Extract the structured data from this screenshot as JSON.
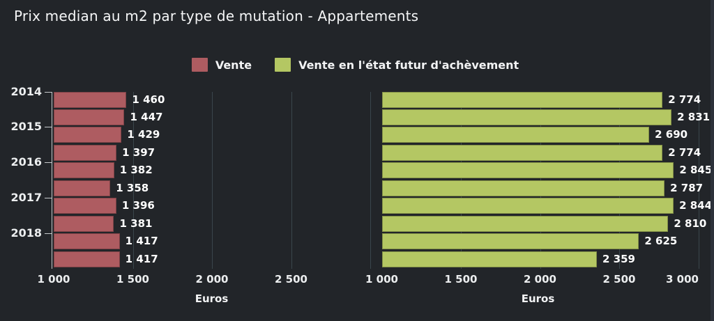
{
  "title": "Prix median au m2 par type de mutation - Appartements",
  "legend": {
    "items": [
      {
        "label": "Vente",
        "color": "#ae5c61"
      },
      {
        "label": "Vente en l'état futur d'achèvement",
        "color": "#b4c763"
      }
    ]
  },
  "chart_data": {
    "type": "bar",
    "orientation": "horizontal",
    "title": "Prix median au m2 par type de mutation - Appartements",
    "xlabel": "Euros",
    "x_range": [
      1000,
      3050
    ],
    "grid": true,
    "legend_position": "top",
    "y_axis_year_ticks": [
      "2014",
      "2015",
      "2016",
      "2017",
      "2018"
    ],
    "bars_per_year": 2,
    "panels": [
      {
        "series": "Vente",
        "color": "#ae5c61",
        "values": [
          1460,
          1447,
          1429,
          1397,
          1382,
          1358,
          1396,
          1381,
          1417,
          1417
        ],
        "x_tick_values": [
          1000,
          1500,
          2000,
          2500
        ],
        "x_tick_labels": [
          "1 000",
          "1 500",
          "2 000",
          "2 500"
        ],
        "axis_title": "Euros"
      },
      {
        "series": "Vente en l'état futur d'achèvement",
        "color": "#b4c763",
        "values": [
          2774,
          2831,
          2690,
          2774,
          2845,
          2787,
          2844,
          2810,
          2625,
          2359
        ],
        "x_tick_values": [
          1000,
          1500,
          2000,
          2500,
          3000
        ],
        "x_tick_labels": [
          "1 000",
          "1 500",
          "2 000",
          "2 500",
          "3 000"
        ],
        "axis_title": "Euros"
      }
    ]
  },
  "colors": {
    "background": "#222529",
    "panel_edge": "#2c313a",
    "gridline": "#3a464c",
    "axis": "#c6cacc",
    "text": "#ffffff"
  }
}
